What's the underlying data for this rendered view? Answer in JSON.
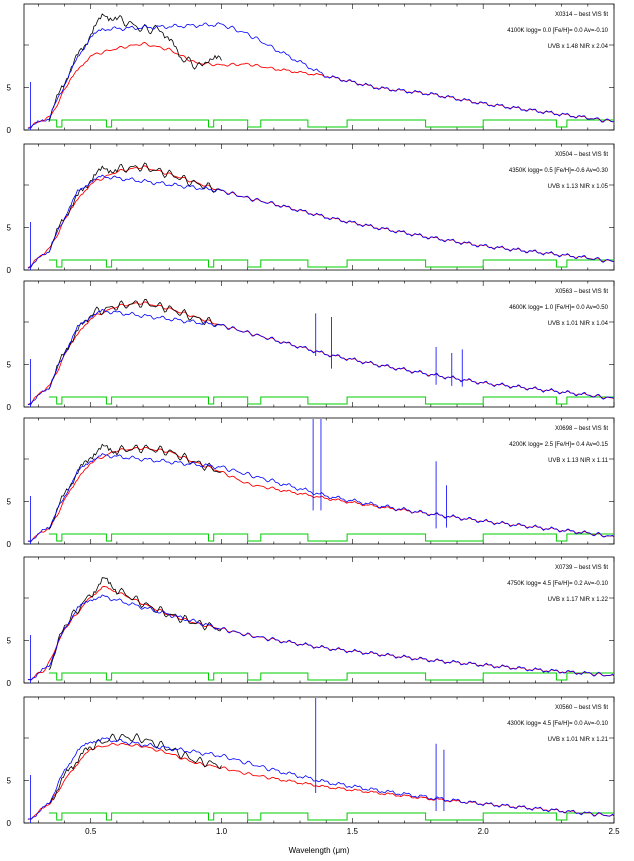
{
  "chart_data": {
    "type": "line",
    "xlabel": "Wavelength (μm)",
    "xlim": [
      0.245,
      2.5
    ],
    "x_ticks": [
      0.5,
      1.0,
      1.5,
      2.0,
      2.5
    ],
    "x_tick_labels": [
      "0.5",
      "1.0",
      "1.5",
      "2.0",
      "2.5"
    ],
    "y_tick_labels": [
      "",
      "5",
      "0"
    ],
    "colors": {
      "observed": "#000000",
      "model": "#ff0000",
      "uvb_nir": "#0000ff",
      "mask": "#00cc00"
    },
    "panels": [
      {
        "title": "X0314 – best VIS fit",
        "params": "4100K logg= 0.0 [Fe/H]= 0.0 Av=-0.10",
        "scale": "UVB x 1.48  NIR x 2.04",
        "model": [
          [
            0.26,
            0.02
          ],
          [
            0.35,
            0.12
          ],
          [
            0.42,
            0.42
          ],
          [
            0.5,
            0.62
          ],
          [
            0.6,
            0.68
          ],
          [
            0.7,
            0.72
          ],
          [
            0.8,
            0.67
          ],
          [
            0.9,
            0.56
          ],
          [
            1.0,
            0.54
          ],
          [
            1.1,
            0.55
          ],
          [
            1.2,
            0.51
          ],
          [
            1.4,
            0.45
          ],
          [
            1.6,
            0.35
          ],
          [
            1.8,
            0.3
          ],
          [
            2.0,
            0.22
          ],
          [
            2.2,
            0.16
          ],
          [
            2.4,
            0.1
          ],
          [
            2.5,
            0.07
          ]
        ],
        "observed": [
          [
            0.34,
            0.1
          ],
          [
            0.42,
            0.5
          ],
          [
            0.5,
            0.8
          ],
          [
            0.55,
            0.96
          ],
          [
            0.6,
            0.93
          ],
          [
            0.7,
            0.84
          ],
          [
            0.77,
            0.84
          ],
          [
            0.85,
            0.6
          ],
          [
            0.92,
            0.52
          ],
          [
            0.95,
            0.6
          ],
          [
            1.0,
            0.58
          ]
        ],
        "blue": [
          [
            0.26,
            0.02
          ],
          [
            0.34,
            0.1
          ],
          [
            0.4,
            0.38
          ],
          [
            0.45,
            0.6
          ],
          [
            0.5,
            0.78
          ],
          [
            0.55,
            0.84
          ],
          [
            1.0,
            0.88
          ],
          [
            1.1,
            0.8
          ],
          [
            1.2,
            0.68
          ],
          [
            1.4,
            0.45
          ],
          [
            1.6,
            0.35
          ],
          [
            1.8,
            0.3
          ],
          [
            2.0,
            0.22
          ],
          [
            2.2,
            0.16
          ],
          [
            2.4,
            0.1
          ],
          [
            2.5,
            0.07
          ]
        ],
        "spikes": []
      },
      {
        "title": "X0504 – best VIS fit",
        "params": "4350K logg= 0.5 [Fe/H]=-0.6 Av=0.30",
        "scale": "UVB x 1.13  NIR x 1.05",
        "model": [
          [
            0.26,
            0.02
          ],
          [
            0.35,
            0.2
          ],
          [
            0.42,
            0.5
          ],
          [
            0.5,
            0.72
          ],
          [
            0.6,
            0.82
          ],
          [
            0.7,
            0.86
          ],
          [
            0.8,
            0.8
          ],
          [
            0.9,
            0.73
          ],
          [
            1.0,
            0.66
          ],
          [
            1.1,
            0.6
          ],
          [
            1.2,
            0.55
          ],
          [
            1.4,
            0.44
          ],
          [
            1.6,
            0.35
          ],
          [
            1.8,
            0.27
          ],
          [
            2.0,
            0.2
          ],
          [
            2.2,
            0.15
          ],
          [
            2.4,
            0.1
          ],
          [
            2.5,
            0.07
          ]
        ],
        "observed": [
          [
            0.34,
            0.18
          ],
          [
            0.42,
            0.52
          ],
          [
            0.5,
            0.76
          ],
          [
            0.55,
            0.84
          ],
          [
            0.6,
            0.84
          ],
          [
            0.7,
            0.86
          ],
          [
            0.8,
            0.8
          ],
          [
            0.9,
            0.72
          ],
          [
            1.0,
            0.66
          ]
        ],
        "blue": [
          [
            0.26,
            0.02
          ],
          [
            0.34,
            0.16
          ],
          [
            0.4,
            0.44
          ],
          [
            0.45,
            0.65
          ],
          [
            0.5,
            0.74
          ],
          [
            0.55,
            0.78
          ],
          [
            1.0,
            0.66
          ],
          [
            1.1,
            0.6
          ],
          [
            1.2,
            0.55
          ],
          [
            1.4,
            0.44
          ],
          [
            1.6,
            0.35
          ],
          [
            1.8,
            0.27
          ],
          [
            2.0,
            0.2
          ],
          [
            2.2,
            0.15
          ],
          [
            2.4,
            0.1
          ],
          [
            2.5,
            0.07
          ]
        ],
        "spikes": []
      },
      {
        "title": "X0563 – best VIS fit",
        "params": "4600K logg= 1.0 [Fe/H]= 0.0 Av=0.50",
        "scale": "UVB x 1.01  NIR x 1.04",
        "model": [
          [
            0.26,
            0.02
          ],
          [
            0.35,
            0.2
          ],
          [
            0.42,
            0.52
          ],
          [
            0.5,
            0.74
          ],
          [
            0.6,
            0.84
          ],
          [
            0.7,
            0.87
          ],
          [
            0.8,
            0.82
          ],
          [
            0.9,
            0.75
          ],
          [
            1.0,
            0.68
          ],
          [
            1.1,
            0.62
          ],
          [
            1.2,
            0.56
          ],
          [
            1.4,
            0.44
          ],
          [
            1.6,
            0.35
          ],
          [
            1.8,
            0.27
          ],
          [
            2.0,
            0.2
          ],
          [
            2.2,
            0.15
          ],
          [
            2.4,
            0.1
          ],
          [
            2.5,
            0.07
          ]
        ],
        "observed": [
          [
            0.34,
            0.18
          ],
          [
            0.42,
            0.54
          ],
          [
            0.5,
            0.78
          ],
          [
            0.6,
            0.84
          ],
          [
            0.7,
            0.87
          ],
          [
            0.8,
            0.82
          ],
          [
            0.9,
            0.74
          ],
          [
            1.0,
            0.68
          ]
        ],
        "blue": [
          [
            0.26,
            0.02
          ],
          [
            0.34,
            0.16
          ],
          [
            0.4,
            0.45
          ],
          [
            0.45,
            0.66
          ],
          [
            0.5,
            0.76
          ],
          [
            0.55,
            0.8
          ],
          [
            1.0,
            0.68
          ],
          [
            1.1,
            0.62
          ],
          [
            1.2,
            0.56
          ],
          [
            1.4,
            0.44
          ],
          [
            1.6,
            0.35
          ],
          [
            1.8,
            0.27
          ],
          [
            2.0,
            0.2
          ],
          [
            2.2,
            0.15
          ],
          [
            2.4,
            0.1
          ],
          [
            2.5,
            0.07
          ]
        ],
        "spikes": [
          [
            1.36,
            0.05,
            0.34
          ],
          [
            1.42,
            0.1,
            0.4
          ],
          [
            1.82,
            0.05,
            0.3
          ],
          [
            1.88,
            0.08,
            0.25
          ],
          [
            1.92,
            0.1,
            0.28
          ]
        ]
      },
      {
        "title": "X0698 – best VIS fit",
        "params": "4200K logg= 2.5 [Fe/H]= 0.4 Av=0.15",
        "scale": "UVB x 1.13  NIR x 1.11",
        "model": [
          [
            0.26,
            0.02
          ],
          [
            0.35,
            0.15
          ],
          [
            0.42,
            0.45
          ],
          [
            0.5,
            0.68
          ],
          [
            0.6,
            0.78
          ],
          [
            0.7,
            0.8
          ],
          [
            0.8,
            0.77
          ],
          [
            0.9,
            0.68
          ],
          [
            1.0,
            0.6
          ],
          [
            1.1,
            0.5
          ],
          [
            1.2,
            0.46
          ],
          [
            1.4,
            0.38
          ],
          [
            1.6,
            0.31
          ],
          [
            1.8,
            0.25
          ],
          [
            2.0,
            0.19
          ],
          [
            2.2,
            0.14
          ],
          [
            2.4,
            0.09
          ],
          [
            2.5,
            0.06
          ]
        ],
        "observed": [
          [
            0.34,
            0.14
          ],
          [
            0.42,
            0.5
          ],
          [
            0.5,
            0.74
          ],
          [
            0.55,
            0.8
          ],
          [
            0.6,
            0.78
          ],
          [
            0.7,
            0.8
          ],
          [
            0.8,
            0.77
          ],
          [
            0.9,
            0.68
          ],
          [
            1.0,
            0.6
          ]
        ],
        "blue": [
          [
            0.26,
            0.02
          ],
          [
            0.34,
            0.14
          ],
          [
            0.4,
            0.4
          ],
          [
            0.45,
            0.6
          ],
          [
            0.5,
            0.7
          ],
          [
            0.55,
            0.74
          ],
          [
            1.0,
            0.64
          ],
          [
            1.1,
            0.58
          ],
          [
            1.2,
            0.52
          ],
          [
            1.4,
            0.4
          ],
          [
            1.6,
            0.32
          ],
          [
            1.8,
            0.25
          ],
          [
            2.0,
            0.19
          ],
          [
            2.2,
            0.14
          ],
          [
            2.4,
            0.09
          ],
          [
            2.5,
            0.06
          ]
        ],
        "spikes": [
          [
            1.35,
            0.4,
            1.2
          ],
          [
            1.38,
            0.4,
            1.2
          ],
          [
            1.82,
            0.2,
            0.5
          ],
          [
            1.86,
            0.18,
            0.3
          ]
        ]
      },
      {
        "title": "X0739 – best VIS fit",
        "params": "4750K logg= 4.5 [Fe/H]= 0.2 Av=-0.10",
        "scale": "UVB x 1.17  NIR x 1.22",
        "model": [
          [
            0.26,
            0.02
          ],
          [
            0.33,
            0.12
          ],
          [
            0.4,
            0.45
          ],
          [
            0.5,
            0.72
          ],
          [
            0.55,
            0.8
          ],
          [
            0.6,
            0.76
          ],
          [
            0.7,
            0.66
          ],
          [
            0.8,
            0.57
          ],
          [
            0.9,
            0.5
          ],
          [
            1.0,
            0.45
          ],
          [
            1.1,
            0.4
          ],
          [
            1.2,
            0.36
          ],
          [
            1.4,
            0.29
          ],
          [
            1.6,
            0.24
          ],
          [
            1.8,
            0.19
          ],
          [
            2.0,
            0.15
          ],
          [
            2.2,
            0.11
          ],
          [
            2.4,
            0.08
          ],
          [
            2.5,
            0.06
          ]
        ],
        "observed": [
          [
            0.34,
            0.12
          ],
          [
            0.4,
            0.48
          ],
          [
            0.5,
            0.74
          ],
          [
            0.55,
            0.86
          ],
          [
            0.6,
            0.78
          ],
          [
            0.7,
            0.66
          ],
          [
            0.8,
            0.57
          ],
          [
            0.9,
            0.5
          ],
          [
            1.0,
            0.45
          ]
        ],
        "blue": [
          [
            0.26,
            0.02
          ],
          [
            0.34,
            0.14
          ],
          [
            0.4,
            0.46
          ],
          [
            0.45,
            0.62
          ],
          [
            0.5,
            0.7
          ],
          [
            0.55,
            0.72
          ],
          [
            1.0,
            0.45
          ],
          [
            1.1,
            0.4
          ],
          [
            1.2,
            0.36
          ],
          [
            1.4,
            0.29
          ],
          [
            1.6,
            0.24
          ],
          [
            1.8,
            0.19
          ],
          [
            2.0,
            0.15
          ],
          [
            2.2,
            0.11
          ],
          [
            2.4,
            0.08
          ],
          [
            2.5,
            0.06
          ]
        ],
        "spikes": []
      },
      {
        "title": "X0560 – best VIS fit",
        "params": "4300K logg= 4.5 [Fe/H]= 0.0 Av=-0.10",
        "scale": "UVB x 1.01  NIR x 1.21",
        "model": [
          [
            0.26,
            0.02
          ],
          [
            0.35,
            0.18
          ],
          [
            0.42,
            0.42
          ],
          [
            0.5,
            0.62
          ],
          [
            0.6,
            0.66
          ],
          [
            0.7,
            0.64
          ],
          [
            0.8,
            0.58
          ],
          [
            0.9,
            0.5
          ],
          [
            1.0,
            0.46
          ],
          [
            1.1,
            0.41
          ],
          [
            1.2,
            0.37
          ],
          [
            1.4,
            0.3
          ],
          [
            1.6,
            0.25
          ],
          [
            1.8,
            0.2
          ],
          [
            2.0,
            0.16
          ],
          [
            2.2,
            0.12
          ],
          [
            2.4,
            0.08
          ],
          [
            2.5,
            0.06
          ]
        ],
        "observed": [
          [
            0.34,
            0.16
          ],
          [
            0.42,
            0.46
          ],
          [
            0.5,
            0.64
          ],
          [
            0.6,
            0.72
          ],
          [
            0.7,
            0.7
          ],
          [
            0.8,
            0.62
          ],
          [
            0.9,
            0.52
          ],
          [
            1.0,
            0.48
          ]
        ],
        "blue": [
          [
            0.26,
            0.02
          ],
          [
            0.34,
            0.16
          ],
          [
            0.4,
            0.44
          ],
          [
            0.45,
            0.6
          ],
          [
            0.5,
            0.68
          ],
          [
            0.55,
            0.7
          ],
          [
            1.0,
            0.56
          ],
          [
            1.1,
            0.5
          ],
          [
            1.2,
            0.44
          ],
          [
            1.4,
            0.34
          ],
          [
            1.6,
            0.27
          ],
          [
            1.8,
            0.21
          ],
          [
            2.0,
            0.16
          ],
          [
            2.2,
            0.12
          ],
          [
            2.4,
            0.08
          ],
          [
            2.5,
            0.06
          ]
        ],
        "spikes": [
          [
            1.36,
            0.3,
            1.0
          ],
          [
            1.82,
            0.2,
            0.5
          ],
          [
            1.85,
            0.2,
            0.45
          ]
        ]
      }
    ],
    "mask": [
      [
        0.34,
        0.1
      ],
      [
        0.37,
        0.1
      ],
      [
        0.37,
        0.0
      ],
      [
        0.39,
        0.0
      ],
      [
        0.39,
        0.1
      ],
      [
        0.56,
        0.1
      ],
      [
        0.56,
        0.0
      ],
      [
        0.58,
        0.0
      ],
      [
        0.58,
        0.1
      ],
      [
        0.95,
        0.1
      ],
      [
        0.95,
        0.0
      ],
      [
        0.97,
        0.0
      ],
      [
        0.97,
        0.1
      ],
      [
        1.1,
        0.1
      ],
      [
        1.1,
        0.0
      ],
      [
        1.15,
        0.0
      ],
      [
        1.15,
        0.1
      ],
      [
        1.33,
        0.1
      ],
      [
        1.33,
        0.0
      ],
      [
        1.48,
        0.0
      ],
      [
        1.48,
        0.1
      ],
      [
        1.78,
        0.1
      ],
      [
        1.78,
        0.0
      ],
      [
        2.0,
        0.0
      ],
      [
        2.0,
        0.1
      ],
      [
        2.28,
        0.1
      ],
      [
        2.28,
        0.0
      ],
      [
        2.32,
        0.0
      ],
      [
        2.32,
        0.1
      ],
      [
        2.5,
        0.1
      ]
    ]
  }
}
